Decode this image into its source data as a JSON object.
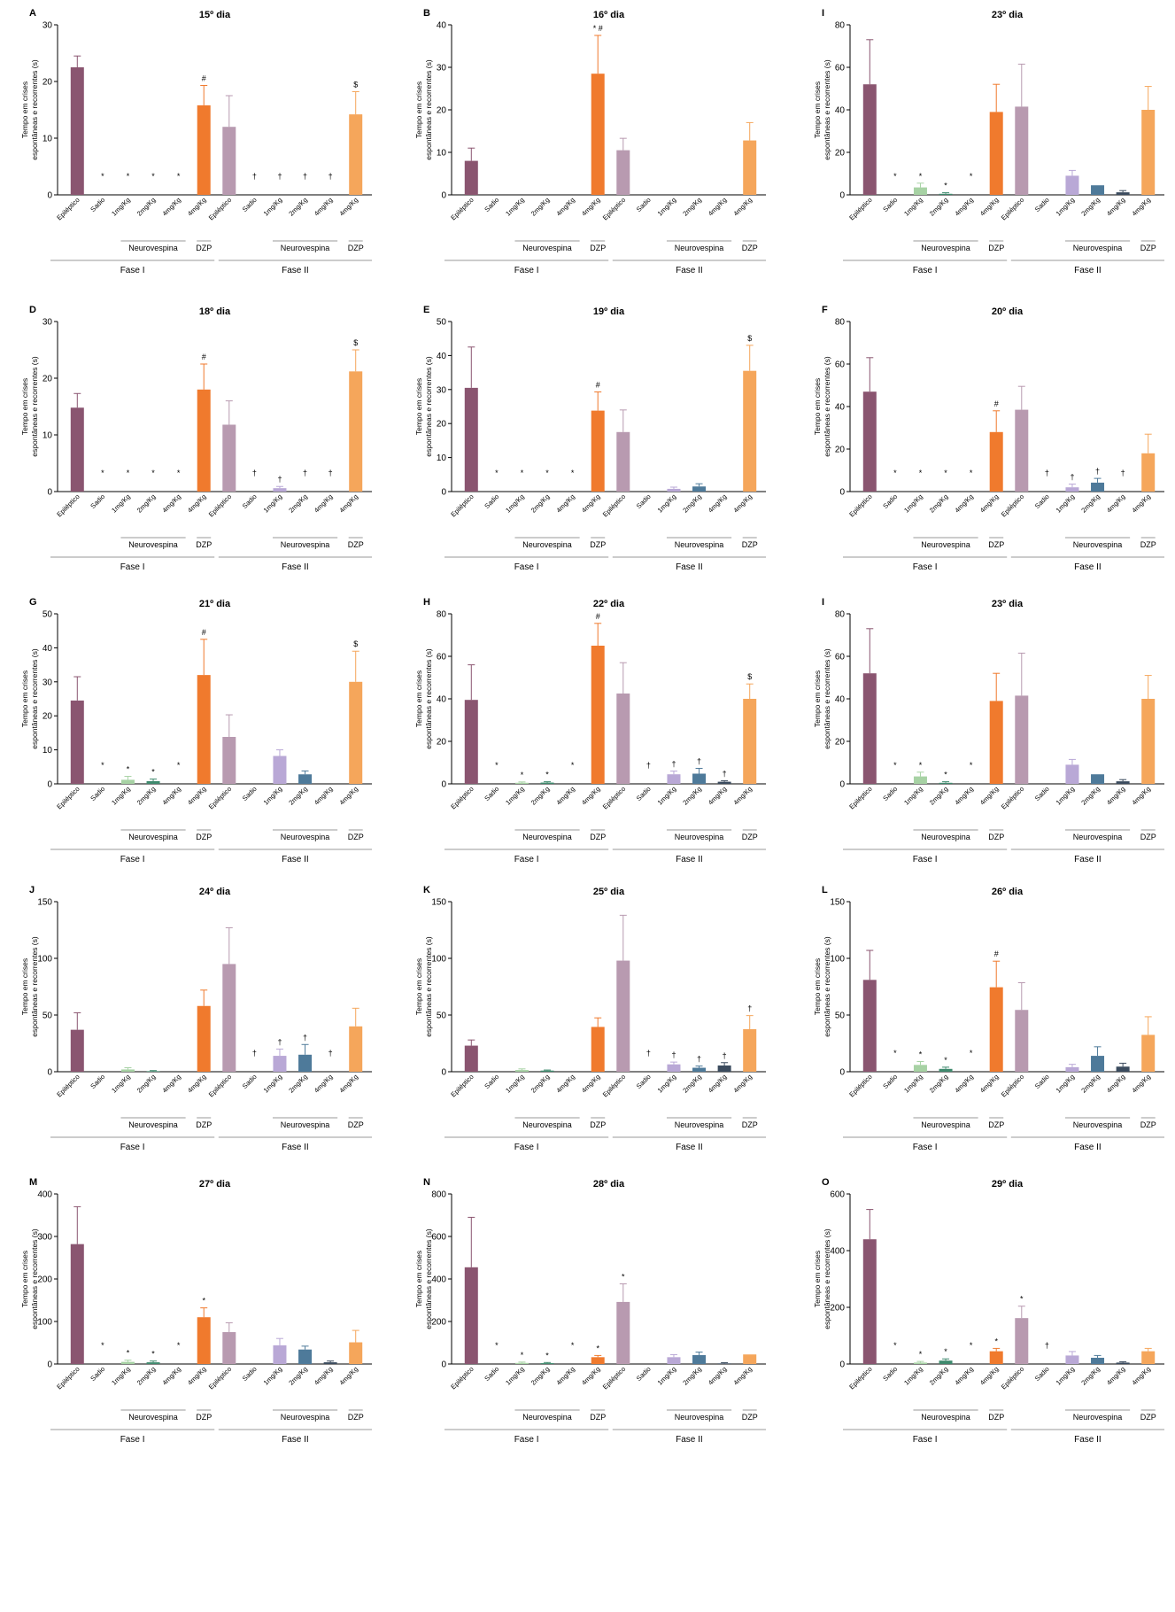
{
  "figure": {
    "category_labels": [
      "Epiléptico",
      "Sadio",
      "1mg/Kg",
      "2mg/Kg",
      "4mg/Kg",
      "4mg/Kg",
      "Epiléptico",
      "Sadio",
      "1mg/Kg",
      "2mg/Kg",
      "4mg/Kg",
      "4mg/Kg"
    ],
    "group_labels": {
      "treatment": "Neurovespina",
      "control": "DZP",
      "phase1": "Fase I",
      "phase2": "Fase II"
    },
    "ylabel": "Tempo em crises espontâneas e recorrentes (s)",
    "colors": {
      "epileptic1": "#8a5570",
      "sham1": "#cfcfcf",
      "t1_1": "#a7d2a4",
      "t2_1": "#3f8a6e",
      "t3_1": "#2c4a3e",
      "dzp1": "#f07a2d",
      "epileptic2": "#b89ab0",
      "sham2": "#dddddd",
      "t1_2": "#b9a8d6",
      "t2_2": "#4e7a9a",
      "t3_2": "#3b4b5e",
      "dzp2": "#f5a65b"
    }
  },
  "chart_data": [
    {
      "type": "bar",
      "panel": "A",
      "title": "15º dia",
      "ylim": [
        0,
        30
      ],
      "ticks": [
        0,
        10,
        20,
        30
      ],
      "values": [
        22.5,
        0,
        0,
        0,
        0,
        15.8,
        12.0,
        0,
        0,
        0,
        0,
        14.2
      ],
      "errors": [
        2.0,
        0,
        0,
        0,
        0,
        3.5,
        5.5,
        0,
        0,
        0,
        0,
        4.0
      ],
      "marks": [
        "",
        "*",
        "*",
        "*",
        "*",
        "#",
        "",
        "†",
        "†",
        "†",
        "†",
        "$"
      ]
    },
    {
      "type": "bar",
      "panel": "B",
      "title": "16º dia",
      "ylim": [
        0,
        40
      ],
      "ticks": [
        0,
        10,
        20,
        30,
        40
      ],
      "values": [
        8.0,
        0,
        0,
        0,
        0,
        28.5,
        10.5,
        0,
        0,
        0,
        0,
        12.8
      ],
      "errors": [
        3.0,
        0,
        0,
        0,
        0,
        9.0,
        2.8,
        0,
        0,
        0,
        0,
        4.2
      ],
      "marks": [
        "",
        "",
        "",
        "",
        "",
        "* #",
        "",
        "",
        "",
        "",
        "",
        ""
      ]
    },
    {
      "type": "bar",
      "panel": "I",
      "title": "23º dia",
      "ylim": [
        0,
        80
      ],
      "ticks": [
        0,
        20,
        40,
        60,
        80
      ],
      "values": [
        52,
        0,
        3.5,
        0.5,
        0,
        39,
        41.5,
        0,
        9,
        4.5,
        1.2,
        40
      ],
      "errors": [
        21,
        0,
        2,
        0.5,
        0,
        13,
        20,
        0,
        2.5,
        0,
        0.8,
        11
      ],
      "marks": [
        "",
        "*",
        "*",
        "*",
        "*",
        "",
        "",
        "",
        "",
        "",
        "",
        ""
      ]
    },
    {
      "type": "bar",
      "panel": "D",
      "title": "18º dia",
      "ylim": [
        0,
        30
      ],
      "ticks": [
        0,
        10,
        20,
        30
      ],
      "values": [
        14.8,
        0,
        0,
        0,
        0,
        18.0,
        11.8,
        0,
        0.6,
        0,
        0,
        21.2
      ],
      "errors": [
        2.5,
        0,
        0,
        0,
        0,
        4.5,
        4.2,
        0,
        0.3,
        0,
        0,
        3.8
      ],
      "marks": [
        "",
        "*",
        "*",
        "*",
        "*",
        "#",
        "",
        "†",
        "†",
        "†",
        "†",
        "$"
      ]
    },
    {
      "type": "bar",
      "panel": "E",
      "title": "19º dia",
      "ylim": [
        0,
        50
      ],
      "ticks": [
        0,
        10,
        20,
        30,
        40,
        50
      ],
      "values": [
        30.5,
        0,
        0,
        0,
        0,
        23.8,
        17.5,
        0,
        0.8,
        1.5,
        0,
        35.5
      ],
      "errors": [
        12,
        0,
        0,
        0,
        0,
        5.5,
        6.5,
        0,
        0.5,
        0.8,
        0,
        7.5
      ],
      "marks": [
        "",
        "*",
        "*",
        "*",
        "*",
        "#",
        "",
        "",
        "",
        "",
        "",
        "$"
      ]
    },
    {
      "type": "bar",
      "panel": "F",
      "title": "20º dia",
      "ylim": [
        0,
        80
      ],
      "ticks": [
        0,
        20,
        40,
        60,
        80
      ],
      "values": [
        47,
        0,
        0,
        0,
        0,
        28,
        38.5,
        0,
        2,
        4.2,
        0,
        18
      ],
      "errors": [
        16,
        0,
        0,
        0,
        0,
        10,
        11,
        0,
        1.5,
        2.0,
        0,
        9
      ],
      "marks": [
        "",
        "*",
        "*",
        "*",
        "*",
        "#",
        "",
        "†",
        "†",
        "†",
        "†",
        ""
      ]
    },
    {
      "type": "bar",
      "panel": "G",
      "title": "21º dia",
      "ylim": [
        0,
        50
      ],
      "ticks": [
        0,
        10,
        20,
        30,
        40,
        50
      ],
      "values": [
        24.5,
        0,
        1.2,
        0.8,
        0,
        32,
        13.8,
        0,
        8.2,
        2.8,
        0,
        30
      ],
      "errors": [
        7,
        0,
        1.0,
        0.6,
        0,
        10.5,
        6.5,
        0,
        1.8,
        1.0,
        0,
        9
      ],
      "marks": [
        "",
        "*",
        "*",
        "*",
        "*",
        "#",
        "",
        "",
        "",
        "",
        "",
        "$"
      ]
    },
    {
      "type": "bar",
      "panel": "H",
      "title": "22º dia",
      "ylim": [
        0,
        80
      ],
      "ticks": [
        0,
        20,
        40,
        60,
        80
      ],
      "values": [
        39.5,
        0,
        0.5,
        0.6,
        0,
        65,
        42.5,
        0,
        4.5,
        4.8,
        1.0,
        40
      ],
      "errors": [
        16.5,
        0,
        0.4,
        0.4,
        0,
        10.5,
        14.5,
        0,
        1.5,
        2.5,
        0.5,
        7
      ],
      "marks": [
        "",
        "*",
        "*",
        "*",
        "*",
        "#",
        "",
        "†",
        "†",
        "†",
        "†",
        "$"
      ]
    },
    {
      "type": "bar",
      "panel": "I",
      "title": "23º dia",
      "ylim": [
        0,
        80
      ],
      "ticks": [
        0,
        20,
        40,
        60,
        80
      ],
      "values": [
        52,
        0,
        3.5,
        0.5,
        0,
        39,
        41.5,
        0,
        9,
        4.5,
        1.2,
        40
      ],
      "errors": [
        21,
        0,
        2,
        0.5,
        0,
        13,
        20,
        0,
        2.5,
        0,
        0.8,
        11
      ],
      "marks": [
        "",
        "*",
        "*",
        "*",
        "*",
        "",
        "",
        "",
        "",
        "",
        "",
        ""
      ]
    },
    {
      "type": "bar",
      "panel": "J",
      "title": "24º dia",
      "ylim": [
        0,
        150
      ],
      "ticks": [
        0,
        50,
        100,
        150
      ],
      "values": [
        37,
        0,
        2,
        0.5,
        0,
        58,
        95,
        0,
        14,
        15,
        0,
        40
      ],
      "errors": [
        15,
        0,
        1.5,
        0.5,
        0,
        14,
        32,
        0,
        6,
        9,
        0,
        16
      ],
      "marks": [
        "",
        "",
        "",
        "",
        "",
        "",
        "",
        "†",
        "†",
        "†",
        "†",
        ""
      ]
    },
    {
      "type": "bar",
      "panel": "K",
      "title": "25º dia",
      "ylim": [
        0,
        150
      ],
      "ticks": [
        0,
        50,
        100,
        150
      ],
      "values": [
        23,
        0,
        1.5,
        1.0,
        0,
        39.5,
        98,
        0,
        6.5,
        3.5,
        5.5,
        37.5
      ],
      "errors": [
        5,
        0,
        1,
        0.5,
        0,
        8,
        40,
        0,
        2,
        1.5,
        2.5,
        12
      ],
      "marks": [
        "",
        "",
        "",
        "",
        "",
        "",
        "",
        "†",
        "†",
        "†",
        "†",
        "†"
      ]
    },
    {
      "type": "bar",
      "panel": "L",
      "title": "26º dia",
      "ylim": [
        0,
        150
      ],
      "ticks": [
        0,
        50,
        100,
        150
      ],
      "values": [
        81,
        0,
        6,
        2.5,
        0,
        74.5,
        54.5,
        0,
        4,
        14,
        4.5,
        32.5
      ],
      "errors": [
        26,
        0,
        3,
        1.5,
        0,
        23,
        24,
        0,
        2.5,
        8,
        3,
        16
      ],
      "marks": [
        "",
        "*",
        "*",
        "*",
        "*",
        "#",
        "",
        "",
        "",
        "",
        "",
        ""
      ]
    },
    {
      "type": "bar",
      "panel": "M",
      "title": "27º dia",
      "ylim": [
        0,
        400
      ],
      "ticks": [
        0,
        100,
        200,
        300,
        400
      ],
      "values": [
        282,
        0,
        5,
        4,
        0,
        110,
        75,
        0,
        44,
        34,
        4,
        51
      ],
      "errors": [
        88,
        0,
        4,
        3,
        0,
        22,
        22,
        0,
        16,
        8,
        3,
        28
      ],
      "marks": [
        "",
        "*",
        "*",
        "*",
        "*",
        "*",
        "",
        "",
        "",
        "",
        "",
        ""
      ]
    },
    {
      "type": "bar",
      "panel": "N",
      "title": "28º dia",
      "ylim": [
        0,
        800
      ],
      "ticks": [
        0,
        200,
        400,
        600,
        800
      ],
      "values": [
        455,
        0,
        5,
        4,
        0,
        32,
        292,
        0,
        32,
        42,
        3,
        45
      ],
      "errors": [
        235,
        0,
        4,
        3,
        0,
        8,
        85,
        0,
        12,
        14,
        3,
        0
      ],
      "marks": [
        "",
        "*",
        "*",
        "*",
        "*",
        "*",
        "*",
        "",
        "",
        "",
        "",
        ""
      ]
    },
    {
      "type": "bar",
      "panel": "O",
      "title": "29º dia",
      "ylim": [
        0,
        600
      ],
      "ticks": [
        0,
        200,
        400,
        600
      ],
      "values": [
        440,
        0,
        5,
        12,
        0,
        45,
        162,
        0,
        30,
        22,
        5,
        45
      ],
      "errors": [
        105,
        0,
        4,
        6,
        0,
        10,
        42,
        0,
        14,
        8,
        3,
        10
      ],
      "marks": [
        "",
        "*",
        "*",
        "*",
        "*",
        "*",
        "*",
        "†",
        "",
        "",
        "",
        ""
      ]
    }
  ]
}
